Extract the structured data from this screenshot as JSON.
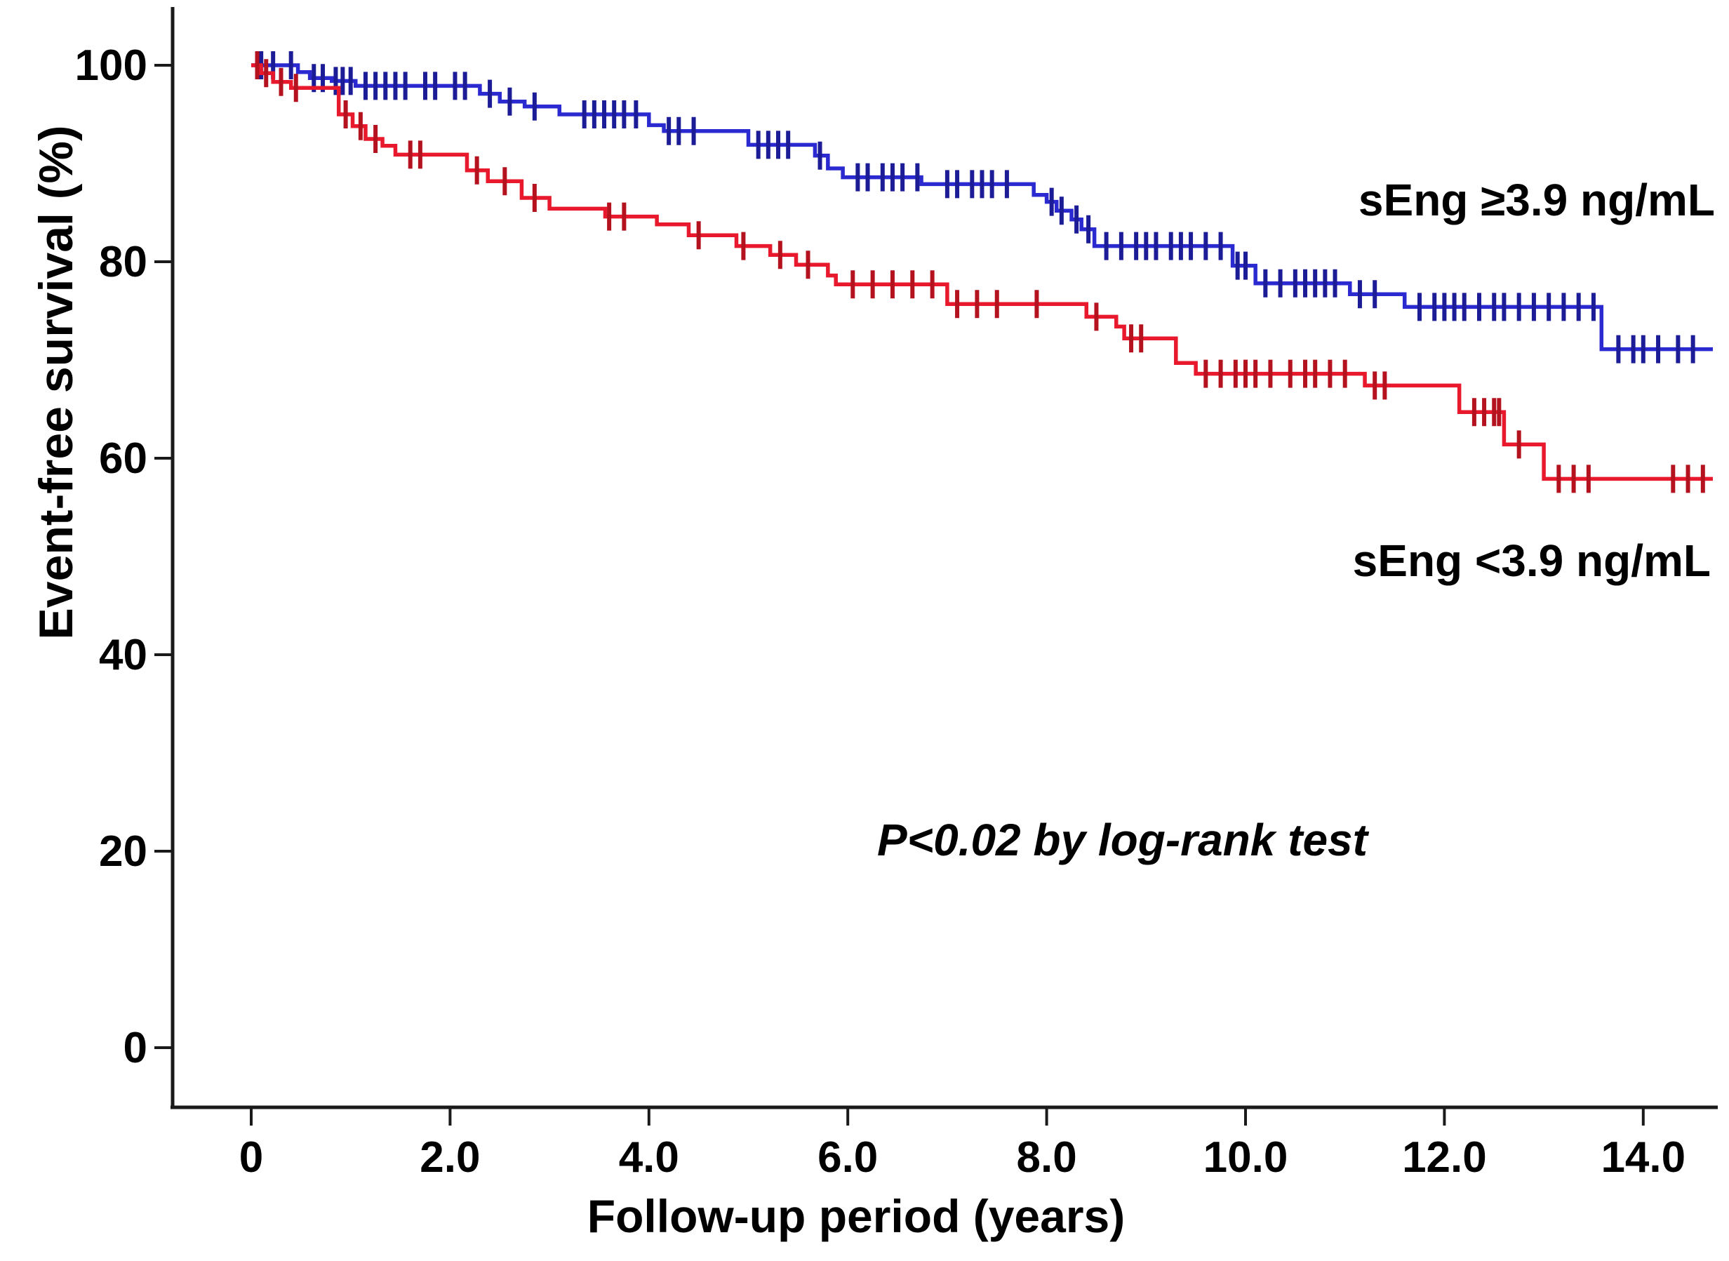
{
  "figure": {
    "y_axis": {
      "title": "Event-free survival (%)",
      "ticks": [
        {
          "value": 0,
          "label": "0"
        },
        {
          "value": 20,
          "label": "20"
        },
        {
          "value": 40,
          "label": "40"
        },
        {
          "value": 60,
          "label": "60"
        },
        {
          "value": 80,
          "label": "80"
        },
        {
          "value": 100,
          "label": "100"
        }
      ]
    },
    "x_axis": {
      "title": "Follow-up period (years)",
      "ticks": [
        {
          "value": 0,
          "label": "0"
        },
        {
          "value": 2,
          "label": "2.0"
        },
        {
          "value": 4,
          "label": "4.0"
        },
        {
          "value": 6,
          "label": "6.0"
        },
        {
          "value": 8,
          "label": "8.0"
        },
        {
          "value": 10,
          "label": "10.0"
        },
        {
          "value": 12,
          "label": "12.0"
        },
        {
          "value": 14,
          "label": "14.0"
        }
      ]
    }
  },
  "legend": {
    "blue": "sEng ≥3.9 ng/mL",
    "red": "sEng <3.9 ng/mL"
  },
  "annotation": {
    "text": "P<0.02 by log-rank test"
  },
  "colors": {
    "axis": "#1a1a1a",
    "blue_line": "#2a2ad0",
    "blue_censor": "#1c1c96",
    "red_line": "#e8192c",
    "red_censor": "#b5121f"
  },
  "chart_data": {
    "type": "line",
    "subtype": "kaplan-meier-step",
    "title": "",
    "xlabel": "Follow-up period (years)",
    "ylabel": "Event-free survival (%)",
    "xlim": [
      0,
      14.7
    ],
    "ylim": [
      0,
      100
    ],
    "grid": false,
    "legend_position": "right-inline",
    "series": [
      {
        "name": "sEng ≥3.9 ng/mL",
        "color": "#2a2ad0",
        "end_x": 14.7,
        "steps": [
          [
            0,
            100
          ],
          [
            0.47,
            99.3
          ],
          [
            0.59,
            98.7
          ],
          [
            0.81,
            98.4
          ],
          [
            1.05,
            97.9
          ],
          [
            2.3,
            97.1
          ],
          [
            2.5,
            96.3
          ],
          [
            2.75,
            95.8
          ],
          [
            3.1,
            95.0
          ],
          [
            4.0,
            93.9
          ],
          [
            4.15,
            93.3
          ],
          [
            5.0,
            91.9
          ],
          [
            5.67,
            90.8
          ],
          [
            5.8,
            89.5
          ],
          [
            5.95,
            88.6
          ],
          [
            6.74,
            87.9
          ],
          [
            7.87,
            86.8
          ],
          [
            8.0,
            86.1
          ],
          [
            8.1,
            85.2
          ],
          [
            8.25,
            84.3
          ],
          [
            8.35,
            83.3
          ],
          [
            8.48,
            81.6
          ],
          [
            9.87,
            79.6
          ],
          [
            10.1,
            77.8
          ],
          [
            11.05,
            76.7
          ],
          [
            11.6,
            75.4
          ],
          [
            13.58,
            71.1
          ]
        ],
        "censor_times": [
          0.1,
          0.22,
          0.4,
          0.63,
          0.72,
          0.85,
          0.92,
          1.0,
          1.15,
          1.25,
          1.35,
          1.45,
          1.55,
          1.75,
          1.85,
          2.05,
          2.15,
          2.4,
          2.6,
          2.85,
          3.35,
          3.45,
          3.55,
          3.65,
          3.75,
          3.87,
          4.2,
          4.3,
          4.45,
          5.1,
          5.2,
          5.3,
          5.4,
          5.72,
          6.1,
          6.2,
          6.35,
          6.45,
          6.55,
          6.7,
          7.0,
          7.1,
          7.25,
          7.35,
          7.45,
          7.6,
          8.05,
          8.15,
          8.3,
          8.42,
          8.6,
          8.75,
          8.9,
          9.0,
          9.1,
          9.25,
          9.35,
          9.45,
          9.6,
          9.75,
          9.92,
          10.0,
          10.2,
          10.35,
          10.5,
          10.6,
          10.7,
          10.8,
          10.9,
          11.15,
          11.3,
          11.75,
          11.9,
          12.0,
          12.1,
          12.2,
          12.35,
          12.5,
          12.6,
          12.75,
          12.9,
          13.05,
          13.2,
          13.35,
          13.5,
          13.75,
          13.9,
          14.0,
          14.15,
          14.35,
          14.5
        ]
      },
      {
        "name": "sEng <3.9 ng/mL",
        "color": "#e8192c",
        "end_x": 14.7,
        "steps": [
          [
            0,
            100
          ],
          [
            0.1,
            99.2
          ],
          [
            0.22,
            98.3
          ],
          [
            0.4,
            97.7
          ],
          [
            0.88,
            95.0
          ],
          [
            1.02,
            93.8
          ],
          [
            1.15,
            92.5
          ],
          [
            1.32,
            91.8
          ],
          [
            1.45,
            90.9
          ],
          [
            2.17,
            89.3
          ],
          [
            2.38,
            88.2
          ],
          [
            2.72,
            86.5
          ],
          [
            3.0,
            85.4
          ],
          [
            3.56,
            84.6
          ],
          [
            4.08,
            83.8
          ],
          [
            4.4,
            82.7
          ],
          [
            4.88,
            81.6
          ],
          [
            5.22,
            80.7
          ],
          [
            5.48,
            79.7
          ],
          [
            5.8,
            78.6
          ],
          [
            5.88,
            77.7
          ],
          [
            7.0,
            75.7
          ],
          [
            8.4,
            74.4
          ],
          [
            8.7,
            73.4
          ],
          [
            8.78,
            72.2
          ],
          [
            9.3,
            69.7
          ],
          [
            9.5,
            68.6
          ],
          [
            11.2,
            67.4
          ],
          [
            12.15,
            64.7
          ],
          [
            12.6,
            61.4
          ],
          [
            13.0,
            57.9
          ]
        ],
        "censor_times": [
          0.06,
          0.15,
          0.3,
          0.45,
          0.95,
          1.1,
          1.25,
          1.6,
          1.7,
          2.27,
          2.55,
          2.85,
          3.6,
          3.75,
          4.5,
          4.95,
          5.32,
          5.6,
          6.05,
          6.25,
          6.45,
          6.65,
          6.85,
          7.1,
          7.3,
          7.5,
          7.9,
          8.5,
          8.85,
          8.95,
          9.6,
          9.75,
          9.9,
          10.0,
          10.1,
          10.25,
          10.45,
          10.6,
          10.7,
          10.85,
          11.0,
          11.3,
          11.4,
          12.3,
          12.4,
          12.5,
          12.55,
          12.75,
          13.15,
          13.3,
          13.45,
          14.3,
          14.45,
          14.6
        ]
      }
    ],
    "annotations": [
      "P<0.02 by log-rank test"
    ]
  }
}
